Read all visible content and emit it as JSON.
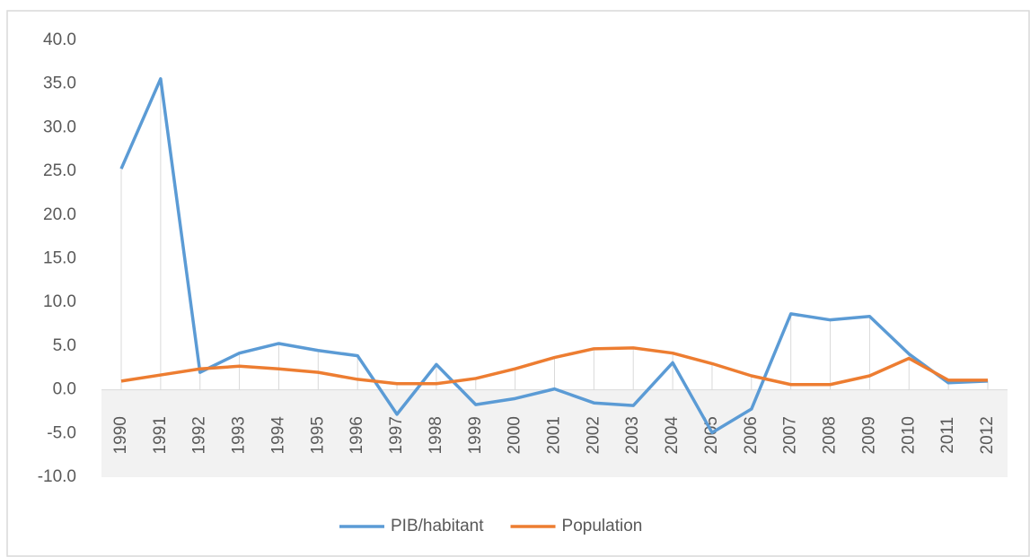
{
  "chart_data": {
    "type": "line",
    "categories": [
      "1990",
      "1991",
      "1992",
      "1993",
      "1994",
      "1995",
      "1996",
      "1997",
      "1998",
      "1999",
      "2000",
      "2001",
      "2002",
      "2003",
      "2004",
      "2005",
      "2006",
      "2007",
      "2008",
      "2009",
      "2010",
      "2011",
      "2012"
    ],
    "series": [
      {
        "name": "PIB/habitant",
        "color": "#5b9bd5",
        "values": [
          25.3,
          35.6,
          2.0,
          4.2,
          5.3,
          4.5,
          3.9,
          -2.8,
          2.9,
          -1.7,
          -1.0,
          0.1,
          -1.5,
          -1.8,
          3.1,
          -4.9,
          -2.2,
          8.7,
          8.0,
          8.4,
          4.1,
          0.8,
          1.0
        ]
      },
      {
        "name": "Population",
        "color": "#ed7d31",
        "values": [
          1.0,
          1.7,
          2.4,
          2.7,
          2.4,
          2.0,
          1.2,
          0.7,
          0.7,
          1.3,
          2.4,
          3.7,
          4.7,
          4.8,
          4.2,
          3.0,
          1.6,
          0.6,
          0.6,
          1.6,
          3.6,
          1.1,
          1.1
        ]
      }
    ],
    "ylim": [
      -10,
      40
    ],
    "yticks": [
      {
        "value": -10,
        "label": "-10.0"
      },
      {
        "value": -5,
        "label": "-5.0"
      },
      {
        "value": 0,
        "label": "0.0"
      },
      {
        "value": 5,
        "label": "5.0"
      },
      {
        "value": 10,
        "label": "10.0"
      },
      {
        "value": 15,
        "label": "15.0"
      },
      {
        "value": 20,
        "label": "20.0"
      },
      {
        "value": 25,
        "label": "25.0"
      },
      {
        "value": 30,
        "label": "30.0"
      },
      {
        "value": 35,
        "label": "35.0"
      },
      {
        "value": 40,
        "label": "40.0"
      }
    ],
    "legend": "bottom"
  }
}
